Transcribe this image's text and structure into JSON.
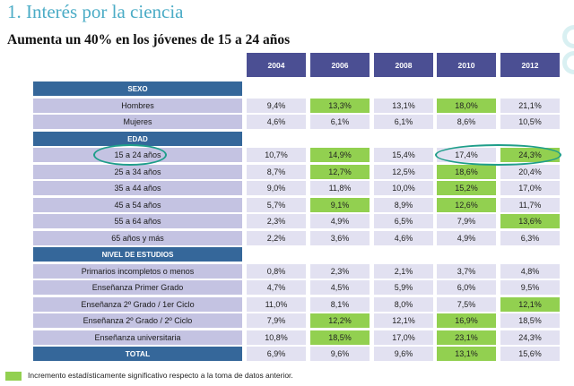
{
  "slide": {
    "title": "1. Interés por la ciencia",
    "subtitle": "Aumenta un 40% en los jóvenes de 15 a 24 años"
  },
  "colors": {
    "header": "#4b4f93",
    "section": "#35679a",
    "label_bg": "#c4c3e2",
    "cell_bg": "#e2e1f1",
    "highlight": "#92d050",
    "title": "#4bacc6",
    "oval": "#1f9e8a"
  },
  "legend": {
    "text": "Incremento estadísticamente significativo respecto a la toma de datos anterior."
  },
  "chart_data": {
    "type": "table",
    "columns": [
      "2004",
      "2006",
      "2008",
      "2010",
      "2012"
    ],
    "rows": [
      {
        "kind": "section",
        "label": "SEXO"
      },
      {
        "kind": "data",
        "label": "Hombres",
        "values": [
          "9,4%",
          "13,3%",
          "13,1%",
          "18,0%",
          "21,1%"
        ],
        "significant": [
          false,
          true,
          false,
          true,
          false
        ]
      },
      {
        "kind": "data",
        "label": "Mujeres",
        "values": [
          "4,6%",
          "6,1%",
          "6,1%",
          "8,6%",
          "10,5%"
        ],
        "significant": [
          false,
          false,
          false,
          false,
          false
        ]
      },
      {
        "kind": "section",
        "label": "EDAD"
      },
      {
        "kind": "data",
        "label": "15 a 24 años",
        "values": [
          "10,7%",
          "14,9%",
          "15,4%",
          "17,4%",
          "24,3%"
        ],
        "significant": [
          false,
          true,
          false,
          false,
          true
        ]
      },
      {
        "kind": "data",
        "label": "25 a 34 años",
        "values": [
          "8,7%",
          "12,7%",
          "12,5%",
          "18,6%",
          "20,4%"
        ],
        "significant": [
          false,
          true,
          false,
          true,
          false
        ]
      },
      {
        "kind": "data",
        "label": "35 a 44 años",
        "values": [
          "9,0%",
          "11,8%",
          "10,0%",
          "15,2%",
          "17,0%"
        ],
        "significant": [
          false,
          false,
          false,
          true,
          false
        ]
      },
      {
        "kind": "data",
        "label": "45 a 54 años",
        "values": [
          "5,7%",
          "9,1%",
          "8,9%",
          "12,6%",
          "11,7%"
        ],
        "significant": [
          false,
          true,
          false,
          true,
          false
        ]
      },
      {
        "kind": "data",
        "label": "55 a 64 años",
        "values": [
          "2,3%",
          "4,9%",
          "6,5%",
          "7,9%",
          "13,6%"
        ],
        "significant": [
          false,
          false,
          false,
          false,
          true
        ]
      },
      {
        "kind": "data",
        "label": "65 años y más",
        "values": [
          "2,2%",
          "3,6%",
          "4,6%",
          "4,9%",
          "6,3%"
        ],
        "significant": [
          false,
          false,
          false,
          false,
          false
        ]
      },
      {
        "kind": "section",
        "label": "NIVEL DE ESTUDIOS"
      },
      {
        "kind": "data",
        "label": "Primarios incompletos o menos",
        "values": [
          "0,8%",
          "2,3%",
          "2,1%",
          "3,7%",
          "4,8%"
        ],
        "significant": [
          false,
          false,
          false,
          false,
          false
        ]
      },
      {
        "kind": "data",
        "label": "Enseñanza Primer Grado",
        "values": [
          "4,7%",
          "4,5%",
          "5,9%",
          "6,0%",
          "9,5%"
        ],
        "significant": [
          false,
          false,
          false,
          false,
          false
        ]
      },
      {
        "kind": "data",
        "label": "Enseñanza 2º Grado / 1er Ciclo",
        "values": [
          "11,0%",
          "8,1%",
          "8,0%",
          "7,5%",
          "12,1%"
        ],
        "significant": [
          false,
          false,
          false,
          false,
          true
        ]
      },
      {
        "kind": "data",
        "label": "Enseñanza 2º Grado / 2º Ciclo",
        "values": [
          "7,9%",
          "12,2%",
          "12,1%",
          "16,9%",
          "18,5%"
        ],
        "significant": [
          false,
          true,
          false,
          true,
          false
        ]
      },
      {
        "kind": "data",
        "label": "Enseñanza universitaria",
        "values": [
          "10,8%",
          "18,5%",
          "17,0%",
          "23,1%",
          "24,3%"
        ],
        "significant": [
          false,
          true,
          false,
          true,
          false
        ]
      },
      {
        "kind": "total",
        "label": "TOTAL",
        "values": [
          "6,9%",
          "9,6%",
          "9,6%",
          "13,1%",
          "15,6%"
        ],
        "significant": [
          false,
          false,
          false,
          true,
          false
        ]
      }
    ],
    "circled": [
      {
        "row": "15 a 24 años",
        "column": "label"
      },
      {
        "row": "15 a 24 años",
        "column": "2010"
      },
      {
        "row": "15 a 24 años",
        "column": "2012"
      }
    ]
  }
}
